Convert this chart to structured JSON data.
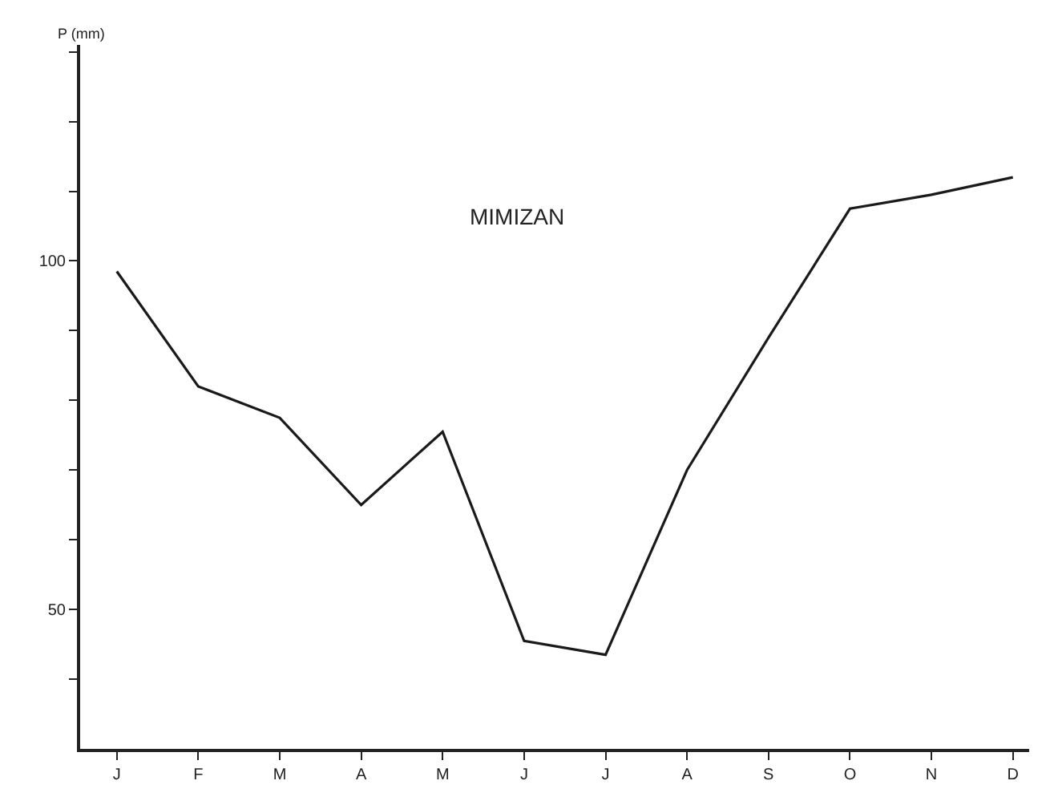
{
  "chart_data": {
    "type": "line",
    "title": "MIMIZAN",
    "ylabel": "P (mm)",
    "categories": [
      "J",
      "F",
      "M",
      "A",
      "M",
      "J",
      "J",
      "A",
      "S",
      "O",
      "N",
      "D"
    ],
    "series": [
      {
        "color": "#1a1a1a",
        "values": [
          98.5,
          82,
          77.5,
          65,
          75.5,
          45.5,
          43.5,
          70,
          89,
          107.5,
          109.5,
          112
        ]
      }
    ],
    "ylim": [
      30,
      131
    ],
    "yticks": [
      {
        "value": 40,
        "label": null
      },
      50,
      {
        "value": 60,
        "label": null
      },
      {
        "value": 70,
        "label": null
      },
      {
        "value": 80,
        "label": null
      },
      {
        "value": 90,
        "label": null
      },
      100,
      {
        "value": 110,
        "label": null
      },
      {
        "value": 120,
        "label": null
      },
      {
        "value": 130,
        "label": null
      }
    ],
    "marker": "none",
    "line_style": "solid"
  }
}
